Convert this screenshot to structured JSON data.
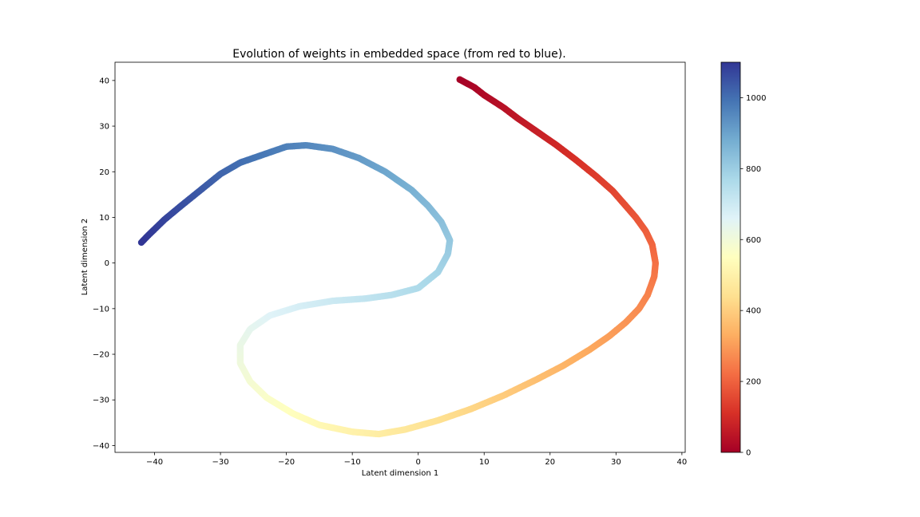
{
  "chart_data": {
    "type": "scatter",
    "title": "Evolution of weights in embedded space (from red to blue).",
    "xlabel": "Latent dimension 1",
    "ylabel": "Latent dimension 2",
    "xlim": [
      -46,
      40.5
    ],
    "ylim": [
      -41.5,
      44
    ],
    "xticks": [
      -40,
      -30,
      -20,
      -10,
      0,
      10,
      20,
      30,
      40
    ],
    "yticks": [
      -40,
      -30,
      -20,
      -10,
      0,
      10,
      20,
      30,
      40
    ],
    "xtick_labels": [
      "−40",
      "−30",
      "−20",
      "−10",
      "0",
      "10",
      "20",
      "30",
      "40"
    ],
    "ytick_labels": [
      "−40",
      "−30",
      "−20",
      "−10",
      "0",
      "10",
      "20",
      "30",
      "40"
    ],
    "grid": false,
    "colormap": "RdYlBu",
    "color_stops": [
      "#a50026",
      "#d73027",
      "#f46d43",
      "#fdae61",
      "#fee090",
      "#ffffbf",
      "#e0f3f8",
      "#abd9e9",
      "#74add1",
      "#4575b4",
      "#313695"
    ],
    "colorbar": {
      "range": [
        0,
        1100
      ],
      "ticks": [
        0,
        200,
        400,
        600,
        800,
        1000
      ],
      "tick_labels": [
        "0",
        "200",
        "400",
        "600",
        "800",
        "1000"
      ]
    },
    "trajectory": {
      "step_range": [
        0,
        1100
      ],
      "path": [
        [
          6.3,
          40.2
        ],
        [
          8.5,
          38.5
        ],
        [
          10.0,
          36.8
        ],
        [
          13.0,
          34.0
        ],
        [
          15.0,
          31.8
        ],
        [
          18.0,
          28.8
        ],
        [
          21.0,
          25.8
        ],
        [
          24.0,
          22.5
        ],
        [
          27.0,
          19.0
        ],
        [
          29.5,
          15.8
        ],
        [
          31.5,
          12.5
        ],
        [
          33.0,
          10.0
        ],
        [
          34.5,
          7.0
        ],
        [
          35.5,
          4.0
        ],
        [
          36.0,
          0.0
        ],
        [
          35.8,
          -3.0
        ],
        [
          34.8,
          -7.0
        ],
        [
          33.5,
          -10.0
        ],
        [
          31.5,
          -13.0
        ],
        [
          29.0,
          -16.0
        ],
        [
          26.0,
          -19.0
        ],
        [
          22.0,
          -22.5
        ],
        [
          18.0,
          -25.5
        ],
        [
          13.0,
          -29.0
        ],
        [
          8.0,
          -32.0
        ],
        [
          3.0,
          -34.5
        ],
        [
          -2.0,
          -36.5
        ],
        [
          -6.0,
          -37.5
        ],
        [
          -10.0,
          -37.0
        ],
        [
          -15.0,
          -35.5
        ],
        [
          -19.0,
          -33.0
        ],
        [
          -23.0,
          -29.5
        ],
        [
          -25.5,
          -26.0
        ],
        [
          -27.0,
          -22.0
        ],
        [
          -27.0,
          -18.0
        ],
        [
          -25.5,
          -14.5
        ],
        [
          -22.5,
          -11.5
        ],
        [
          -18.0,
          -9.5
        ],
        [
          -13.0,
          -8.3
        ],
        [
          -8.0,
          -7.8
        ],
        [
          -4.0,
          -7.0
        ],
        [
          0.0,
          -5.5
        ],
        [
          3.0,
          -2.0
        ],
        [
          4.5,
          2.0
        ],
        [
          4.8,
          5.0
        ],
        [
          3.5,
          9.0
        ],
        [
          1.5,
          12.5
        ],
        [
          -1.0,
          16.0
        ],
        [
          -5.0,
          20.0
        ],
        [
          -9.0,
          23.0
        ],
        [
          -13.0,
          25.0
        ],
        [
          -17.0,
          25.8
        ],
        [
          -20.0,
          25.5
        ],
        [
          -23.0,
          24.0
        ],
        [
          -27.0,
          22.0
        ],
        [
          -30.0,
          19.5
        ],
        [
          -33.0,
          16.0
        ],
        [
          -36.0,
          12.5
        ],
        [
          -38.5,
          9.5
        ],
        [
          -41.0,
          6.0
        ],
        [
          -42.0,
          4.5
        ]
      ]
    }
  }
}
